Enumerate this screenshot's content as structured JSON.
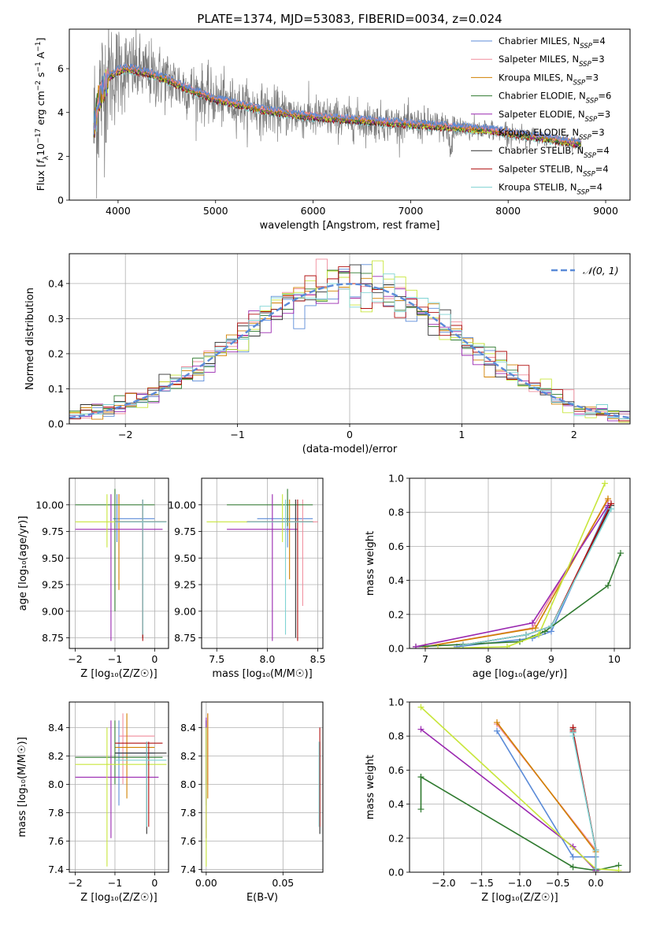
{
  "figure_title": "PLATE=1374, MJD=53083, FIBERID=0034, z=0.024",
  "colors": {
    "Chabrier MILES": "#5b8bd8",
    "Salpeter MILES": "#f08c9c",
    "Kroupa MILES": "#d08000",
    "Chabrier ELODIE": "#2f7a2f",
    "Salpeter ELODIE": "#9a28b0",
    "Kroupa ELODIE": "#c8e63c",
    "Chabrier STELIB": "#303030",
    "Salpeter STELIB": "#b01010",
    "Kroupa STELIB": "#7fd3d3",
    "data": "#7a7a7a",
    "normal": "#5b8bd8"
  },
  "legend_entries": [
    {
      "name": "Chabrier MILES",
      "n": "4"
    },
    {
      "name": "Salpeter MILES",
      "n": "3"
    },
    {
      "name": "Kroupa MILES",
      "n": "3"
    },
    {
      "name": "Chabrier ELODIE",
      "n": "6"
    },
    {
      "name": "Salpeter ELODIE",
      "n": "3"
    },
    {
      "name": "Kroupa ELODIE",
      "n": "3"
    },
    {
      "name": "Chabrier STELIB",
      "n": "4"
    },
    {
      "name": "Salpeter STELIB",
      "n": "4"
    },
    {
      "name": "Kroupa STELIB",
      "n": "4"
    }
  ],
  "chart_data": [
    {
      "id": "spectrum",
      "type": "line",
      "xlabel": "wavelength [Angstrom, rest frame]",
      "ylabel_parts": {
        "pre": "Flux [",
        "sym": "f",
        "sub": "λ",
        "mid": "10",
        "exp1": "−17",
        "unit": " erg cm",
        "exp2": "−2",
        "unit2": " s",
        "exp3": "−1",
        "unit3": " A",
        "exp4": "−1",
        "post": "]"
      },
      "xlim": [
        3500,
        9250
      ],
      "ylim": [
        0,
        7.8
      ],
      "xticks": [
        4000,
        5000,
        6000,
        7000,
        8000,
        9000
      ],
      "yticks": [
        0,
        2,
        4,
        6
      ],
      "data_x": [
        3750,
        3800,
        3900,
        4000,
        4100,
        4300,
        4500,
        4700,
        5000,
        5200,
        5500,
        5800,
        6000,
        6300,
        6600,
        6900,
        7200,
        7500,
        7800,
        8100,
        8400,
        8700
      ],
      "model_y": [
        3.2,
        4.6,
        5.6,
        5.9,
        6.0,
        5.8,
        5.5,
        5.1,
        4.6,
        4.4,
        4.1,
        3.9,
        3.8,
        3.7,
        3.6,
        3.5,
        3.4,
        3.3,
        3.2,
        3.0,
        2.8,
        2.6
      ],
      "noise_amp": [
        3.5,
        3.5,
        2.5,
        2.0,
        1.6,
        1.4,
        1.3,
        1.2,
        1.1,
        1.0,
        1.0,
        0.9,
        0.9,
        0.8,
        0.8,
        0.7,
        0.7,
        0.5,
        0.4,
        0.4,
        0.35,
        0.35
      ]
    },
    {
      "id": "residuals",
      "type": "histogram",
      "xlabel": "(data-model)/error",
      "ylabel": "Normed distribution",
      "legend": "𝒩(0, 1)",
      "xlim": [
        -2.5,
        2.5
      ],
      "ylim": [
        0,
        0.485
      ],
      "xticks": [
        -2,
        -1,
        0,
        1,
        2
      ],
      "yticks": [
        0.0,
        0.1,
        0.2,
        0.3,
        0.4
      ],
      "bin_width": 0.1
    },
    {
      "id": "age_vs_Z",
      "type": "errorbar",
      "xlabel": "Z [log₁₀(Z/Z☉)]",
      "ylabel": "age  [log₁₀(age/yr)]",
      "xlim": [
        -2.15,
        0.35
      ],
      "ylim": [
        8.65,
        10.25
      ],
      "xticks": [
        -2,
        -1,
        0
      ],
      "yticks": [
        8.75,
        9.0,
        9.25,
        9.5,
        9.75,
        10.0
      ],
      "points": [
        {
          "m": "Chabrier MILES",
          "x": -0.95,
          "y": 9.87,
          "xl": -1.05,
          "xh": 0.0,
          "yl": 9.65,
          "yh": 10.1
        },
        {
          "m": "Salpeter MILES",
          "x": -0.9,
          "y": 9.84,
          "xl": -1.0,
          "xh": 0.1,
          "yl": 9.3,
          "yh": 10.1
        },
        {
          "m": "Kroupa MILES",
          "x": -0.9,
          "y": 9.84,
          "xl": -1.0,
          "xh": 0.1,
          "yl": 9.2,
          "yh": 10.1
        },
        {
          "m": "Chabrier ELODIE",
          "x": -1.0,
          "y": 10.0,
          "xl": -2.0,
          "xh": 0.0,
          "yl": 9.0,
          "yh": 10.15
        },
        {
          "m": "Salpeter ELODIE",
          "x": -1.1,
          "y": 9.77,
          "xl": -2.0,
          "xh": 0.2,
          "yl": 8.72,
          "yh": 10.1
        },
        {
          "m": "Kroupa ELODIE",
          "x": -1.2,
          "y": 9.84,
          "xl": -2.0,
          "xh": 0.3,
          "yl": 9.6,
          "yh": 10.1
        },
        {
          "m": "Chabrier STELIB",
          "x": -0.3,
          "y": 9.84,
          "xl": -1.0,
          "xh": 0.3,
          "yl": 8.75,
          "yh": 10.05
        },
        {
          "m": "Salpeter STELIB",
          "x": -0.3,
          "y": 9.84,
          "xl": -1.0,
          "xh": 0.3,
          "yl": 8.72,
          "yh": 10.05
        },
        {
          "m": "Kroupa STELIB",
          "x": -0.3,
          "y": 9.84,
          "xl": -1.0,
          "xh": 0.3,
          "yl": 8.78,
          "yh": 10.05
        }
      ]
    },
    {
      "id": "age_vs_mass",
      "type": "errorbar",
      "xlabel": "mass [log₁₀(M/M☉)]",
      "ylabel": "",
      "xlim": [
        7.35,
        8.55
      ],
      "ylim": [
        8.65,
        10.25
      ],
      "xticks": [
        7.5,
        8.0,
        8.5
      ],
      "yticks": [
        8.75,
        9.0,
        9.25,
        9.5,
        9.75,
        10.0
      ],
      "points": [
        {
          "m": "Chabrier MILES",
          "x": 8.2,
          "y": 9.87,
          "xl": 7.9,
          "xh": 8.45,
          "yl": 9.6,
          "yh": 10.05
        },
        {
          "m": "Salpeter MILES",
          "x": 8.35,
          "y": 9.84,
          "xl": 8.1,
          "xh": 8.5,
          "yl": 9.05,
          "yh": 10.05
        },
        {
          "m": "Kroupa MILES",
          "x": 8.22,
          "y": 9.84,
          "xl": 7.95,
          "xh": 8.45,
          "yl": 9.3,
          "yh": 10.05
        },
        {
          "m": "Chabrier ELODIE",
          "x": 8.2,
          "y": 10.0,
          "xl": 7.6,
          "xh": 8.45,
          "yl": 9.8,
          "yh": 10.15
        },
        {
          "m": "Salpeter ELODIE",
          "x": 8.05,
          "y": 9.77,
          "xl": 7.6,
          "xh": 8.3,
          "yl": 8.72,
          "yh": 10.1
        },
        {
          "m": "Kroupa ELODIE",
          "x": 8.15,
          "y": 9.84,
          "xl": 7.4,
          "xh": 8.4,
          "yl": 9.65,
          "yh": 10.1
        },
        {
          "m": "Chabrier STELIB",
          "x": 8.28,
          "y": 9.84,
          "xl": 7.8,
          "xh": 8.45,
          "yl": 8.75,
          "yh": 10.05
        },
        {
          "m": "Salpeter STELIB",
          "x": 8.3,
          "y": 9.84,
          "xl": 7.8,
          "xh": 8.45,
          "yl": 8.72,
          "yh": 10.05
        },
        {
          "m": "Kroupa STELIB",
          "x": 8.18,
          "y": 9.84,
          "xl": 7.8,
          "xh": 8.45,
          "yl": 8.78,
          "yh": 10.05
        }
      ]
    },
    {
      "id": "massweight_vs_age",
      "type": "line",
      "xlabel": "age  [log₁₀(age/yr)]",
      "ylabel": "mass weight",
      "xlim": [
        6.75,
        10.25
      ],
      "ylim": [
        0,
        1.0
      ],
      "xticks": [
        7,
        8,
        9,
        10
      ],
      "yticks": [
        0.0,
        0.2,
        0.4,
        0.6,
        0.8,
        1.0
      ],
      "series": [
        {
          "m": "Chabrier MILES",
          "x": [
            7.5,
            8.7,
            9.0,
            9.9
          ],
          "y": [
            0.01,
            0.06,
            0.1,
            0.83
          ]
        },
        {
          "m": "Salpeter MILES",
          "x": [
            7.0,
            8.7,
            9.9
          ],
          "y": [
            0.01,
            0.12,
            0.87
          ]
        },
        {
          "m": "Kroupa MILES",
          "x": [
            7.0,
            8.75,
            9.9
          ],
          "y": [
            0.01,
            0.12,
            0.88
          ]
        },
        {
          "m": "Chabrier ELODIE",
          "x": [
            6.85,
            8.5,
            8.9,
            9.9,
            10.1
          ],
          "y": [
            0.01,
            0.04,
            0.1,
            0.37,
            0.56
          ]
        },
        {
          "m": "Salpeter ELODIE",
          "x": [
            6.85,
            8.7,
            9.9
          ],
          "y": [
            0.01,
            0.15,
            0.84
          ]
        },
        {
          "m": "Kroupa ELODIE",
          "x": [
            7.2,
            8.3,
            8.8,
            9.85
          ],
          "y": [
            0.0,
            0.01,
            0.08,
            0.97
          ]
        },
        {
          "m": "Chabrier STELIB",
          "x": [
            7.6,
            8.6,
            9.0,
            9.95
          ],
          "y": [
            0.02,
            0.08,
            0.13,
            0.84
          ]
        },
        {
          "m": "Salpeter STELIB",
          "x": [
            7.6,
            8.6,
            9.0,
            9.95
          ],
          "y": [
            0.02,
            0.08,
            0.13,
            0.85
          ]
        },
        {
          "m": "Kroupa STELIB",
          "x": [
            7.6,
            8.6,
            9.0,
            9.95
          ],
          "y": [
            0.02,
            0.08,
            0.13,
            0.82
          ]
        }
      ]
    },
    {
      "id": "mass_vs_Z",
      "type": "errorbar",
      "xlabel": "Z [log₁₀(Z/Z☉)]",
      "ylabel": "mass [log₁₀(M/M☉)]",
      "xlim": [
        -2.15,
        0.35
      ],
      "ylim": [
        7.38,
        8.58
      ],
      "xticks": [
        -2,
        -1,
        0
      ],
      "yticks": [
        7.4,
        7.6,
        7.8,
        8.0,
        8.2,
        8.4
      ],
      "points": [
        {
          "m": "Chabrier MILES",
          "x": -0.9,
          "y": 8.22,
          "xl": -1.0,
          "xh": 0.0,
          "yl": 7.85,
          "yh": 8.45
        },
        {
          "m": "Salpeter MILES",
          "x": -0.8,
          "y": 8.34,
          "xl": -0.9,
          "xh": 0.0,
          "yl": 8.0,
          "yh": 8.5
        },
        {
          "m": "Kroupa MILES",
          "x": -0.7,
          "y": 8.26,
          "xl": -1.0,
          "xh": 0.0,
          "yl": 7.9,
          "yh": 8.5
        },
        {
          "m": "Chabrier ELODIE",
          "x": -1.0,
          "y": 8.19,
          "xl": -2.0,
          "xh": 0.2,
          "yl": 8.0,
          "yh": 8.45
        },
        {
          "m": "Salpeter ELODIE",
          "x": -1.1,
          "y": 8.05,
          "xl": -2.0,
          "xh": 0.1,
          "yl": 7.62,
          "yh": 8.45
        },
        {
          "m": "Kroupa ELODIE",
          "x": -1.2,
          "y": 8.14,
          "xl": -2.0,
          "xh": 0.3,
          "yl": 7.42,
          "yh": 8.4
        },
        {
          "m": "Chabrier STELIB",
          "x": -0.2,
          "y": 8.22,
          "xl": -1.0,
          "xh": 0.3,
          "yl": 7.65,
          "yh": 8.3
        },
        {
          "m": "Salpeter STELIB",
          "x": -0.15,
          "y": 8.29,
          "xl": -1.0,
          "xh": 0.2,
          "yl": 7.7,
          "yh": 8.3
        },
        {
          "m": "Kroupa STELIB",
          "x": -0.2,
          "y": 8.17,
          "xl": -1.0,
          "xh": 0.3,
          "yl": 7.7,
          "yh": 8.3
        }
      ]
    },
    {
      "id": "mass_vs_EBV",
      "type": "errorbar",
      "xlabel": "E(B-V)",
      "ylabel": "",
      "xlim": [
        -0.003,
        0.076
      ],
      "ylim": [
        7.38,
        8.58
      ],
      "xticks": [
        0.0,
        0.05
      ],
      "xtick_labels": [
        "0.00",
        "0.05"
      ],
      "yticks": [
        7.4,
        7.6,
        7.8,
        8.0,
        8.2,
        8.4
      ],
      "points": [
        {
          "m": "Chabrier MILES",
          "x": 0.0,
          "y": 8.22,
          "xl": 0.0,
          "xh": 0.0,
          "yl": 7.85,
          "yh": 8.45
        },
        {
          "m": "Salpeter MILES",
          "x": 0.001,
          "y": 8.34,
          "xl": 0.001,
          "xh": 0.001,
          "yl": 8.0,
          "yh": 8.5
        },
        {
          "m": "Kroupa MILES",
          "x": 0.001,
          "y": 8.26,
          "xl": 0.001,
          "xh": 0.001,
          "yl": 7.9,
          "yh": 8.5
        },
        {
          "m": "Chabrier ELODIE",
          "x": 0.0,
          "y": 8.19,
          "xl": 0.0,
          "xh": 0.0,
          "yl": 8.0,
          "yh": 8.45
        },
        {
          "m": "Salpeter ELODIE",
          "x": 0.0,
          "y": 8.05,
          "xl": 0.0,
          "xh": 0.0,
          "yl": 7.62,
          "yh": 8.47
        },
        {
          "m": "Kroupa ELODIE",
          "x": 0.0,
          "y": 8.14,
          "xl": 0.0,
          "xh": 0.0,
          "yl": 7.42,
          "yh": 8.4
        },
        {
          "m": "Chabrier STELIB",
          "x": 0.074,
          "y": 8.22,
          "xl": 0.074,
          "xh": 0.074,
          "yl": 7.65,
          "yh": 8.3
        },
        {
          "m": "Salpeter STELIB",
          "x": 0.074,
          "y": 8.29,
          "xl": 0.074,
          "xh": 0.074,
          "yl": 7.7,
          "yh": 8.4
        },
        {
          "m": "Kroupa STELIB",
          "x": 0.0735,
          "y": 8.17,
          "xl": 0.0735,
          "xh": 0.0735,
          "yl": 7.7,
          "yh": 8.3
        }
      ]
    },
    {
      "id": "massweight_vs_Z",
      "type": "line",
      "xlabel": "Z [log₁₀(Z/Z☉)]",
      "ylabel": "mass weight",
      "xlim": [
        -2.45,
        0.45
      ],
      "ylim": [
        0,
        1.0
      ],
      "xticks": [
        -2.0,
        -1.5,
        -1.0,
        -0.5,
        0.0
      ],
      "xtick_labels": [
        "−2.0",
        "−1.5",
        "−1.0",
        "−0.5",
        "0.0"
      ],
      "yticks": [
        0.0,
        0.2,
        0.4,
        0.6,
        0.8,
        1.0
      ],
      "series": [
        {
          "m": "Chabrier MILES",
          "x": [
            -1.3,
            -0.3,
            0.0,
            0.0
          ],
          "y": [
            0.83,
            0.09,
            0.09,
            0.0
          ]
        },
        {
          "m": "Salpeter MILES",
          "x": [
            -1.3,
            0.0,
            0.0
          ],
          "y": [
            0.87,
            0.13,
            0.0
          ]
        },
        {
          "m": "Kroupa MILES",
          "x": [
            -1.3,
            0.0,
            0.0
          ],
          "y": [
            0.88,
            0.12,
            0.0
          ]
        },
        {
          "m": "Chabrier ELODIE",
          "x": [
            -2.3,
            -2.3,
            -2.3,
            -0.3,
            0.0,
            0.3
          ],
          "y": [
            0.37,
            0.56,
            0.56,
            0.03,
            0.01,
            0.04
          ]
        },
        {
          "m": "Salpeter ELODIE",
          "x": [
            -2.3,
            -0.3,
            0.0
          ],
          "y": [
            0.84,
            0.15,
            0.01
          ]
        },
        {
          "m": "Kroupa ELODIE",
          "x": [
            -2.3,
            0.0,
            0.3
          ],
          "y": [
            0.97,
            0.02,
            0.01
          ]
        },
        {
          "m": "Chabrier STELIB",
          "x": [
            -0.3,
            -0.3,
            0.0,
            0.0
          ],
          "y": [
            0.84,
            0.82,
            0.13,
            0.02
          ]
        },
        {
          "m": "Salpeter STELIB",
          "x": [
            -0.3,
            -0.3,
            0.0,
            0.0
          ],
          "y": [
            0.85,
            0.83,
            0.13,
            0.02
          ]
        },
        {
          "m": "Kroupa STELIB",
          "x": [
            -0.3,
            -0.3,
            0.0,
            0.0
          ],
          "y": [
            0.82,
            0.8,
            0.13,
            0.02
          ]
        }
      ]
    }
  ]
}
